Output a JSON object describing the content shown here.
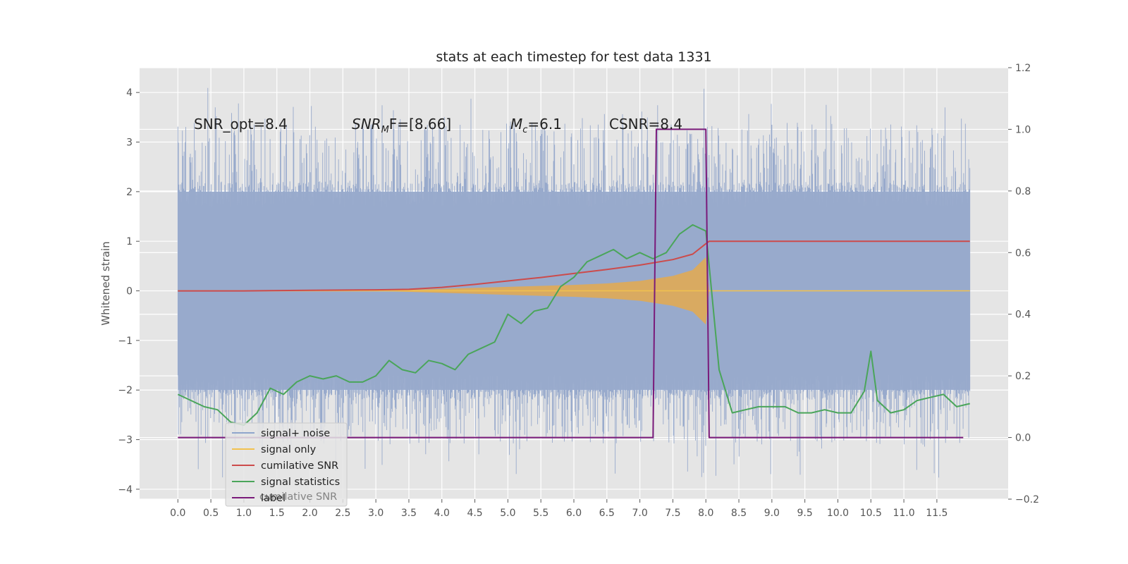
{
  "chart_data": {
    "type": "line",
    "title": "stats at each timestep for test data 1331",
    "ylabel": "Whitened strain",
    "xlim": [
      -0.58,
      12.58
    ],
    "ylim": [
      -4.2,
      4.5
    ],
    "ylim_right": [
      -0.2,
      1.2
    ],
    "x_ticks": [
      "0.0",
      "0.5",
      "1.0",
      "1.5",
      "2.0",
      "2.5",
      "3.0",
      "3.5",
      "4.0",
      "4.5",
      "5.0",
      "5.5",
      "6.0",
      "6.5",
      "7.0",
      "7.5",
      "8.0",
      "8.5",
      "9.0",
      "9.5",
      "10.0",
      "10.5",
      "11.0",
      "11.5"
    ],
    "y_ticks": [
      "4",
      "3",
      "2",
      "1",
      "0",
      "−1",
      "−2",
      "−3",
      "−4"
    ],
    "y_ticks_right": [
      "1.2",
      "1.0",
      "0.8",
      "0.6",
      "0.4",
      "0.2",
      "0.0",
      "−0.2"
    ],
    "grid": true,
    "legend_position": "lower-left",
    "annotations": {
      "snr_opt": "SNR_opt=8.4",
      "snr_mf_main": "SNR",
      "snr_mf_sub": "M",
      "snr_mf_tail": "F=[8.66]",
      "mc_main": "M",
      "mc_sub": "c",
      "mc_tail": "=6.1",
      "csnr": "CSNR=8.4"
    },
    "legend": [
      {
        "label": "signal+ noise",
        "color": "#8fa6cc"
      },
      {
        "label": "signal only",
        "color": "#f2c14e"
      },
      {
        "label": "cumilative SNR",
        "color": "#cc4b4b"
      },
      {
        "label": "signal statistics",
        "color": "#4aa55a"
      },
      {
        "label": "label",
        "color": "#7a1a7a"
      }
    ],
    "legend_ghost_text": "cumilative SNR",
    "series": [
      {
        "name": "signal+ noise",
        "axis": "left",
        "color": "#98aacc",
        "x_range": [
          0.0,
          12.0
        ],
        "envelope_upper": 2.0,
        "envelope_lower": -2.0,
        "description_values": "white noise, spikes up to ~4"
      },
      {
        "name": "signal only",
        "axis": "left",
        "color": "#e0aa55",
        "x": [
          0.0,
          3.0,
          3.5,
          4.0,
          4.5,
          5.0,
          5.5,
          6.0,
          6.5,
          7.0,
          7.5,
          7.8,
          8.0,
          8.05,
          12.0
        ],
        "amplitude": [
          0.0,
          0.0,
          0.02,
          0.04,
          0.06,
          0.08,
          0.1,
          0.12,
          0.15,
          0.2,
          0.3,
          0.42,
          0.68,
          0.0,
          0.0
        ]
      },
      {
        "name": "cumilative SNR",
        "axis": "left",
        "color": "#cc4b4b",
        "x": [
          0.0,
          1.0,
          2.0,
          3.0,
          3.5,
          4.0,
          4.5,
          5.0,
          5.5,
          6.0,
          6.5,
          7.0,
          7.5,
          7.8,
          8.0,
          8.05,
          12.0
        ],
        "values": [
          0.0,
          0.0,
          0.01,
          0.02,
          0.03,
          0.07,
          0.13,
          0.2,
          0.27,
          0.35,
          0.43,
          0.52,
          0.63,
          0.74,
          0.95,
          1.0,
          1.0
        ]
      },
      {
        "name": "signal statistics",
        "axis": "right",
        "color": "#4aa55a",
        "x": [
          0.0,
          0.2,
          0.4,
          0.6,
          0.8,
          1.0,
          1.2,
          1.4,
          1.6,
          1.8,
          2.0,
          2.2,
          2.4,
          2.6,
          2.8,
          3.0,
          3.2,
          3.4,
          3.6,
          3.8,
          4.0,
          4.2,
          4.4,
          4.6,
          4.8,
          5.0,
          5.2,
          5.4,
          5.6,
          5.8,
          6.0,
          6.2,
          6.4,
          6.6,
          6.8,
          7.0,
          7.2,
          7.4,
          7.6,
          7.8,
          8.0,
          8.2,
          8.4,
          8.6,
          8.8,
          9.0,
          9.2,
          9.4,
          9.6,
          9.8,
          10.0,
          10.2,
          10.4,
          10.5,
          10.6,
          10.8,
          11.0,
          11.2,
          11.4,
          11.6,
          11.8,
          12.0
        ],
        "values": [
          0.14,
          0.12,
          0.1,
          0.09,
          0.05,
          0.04,
          0.08,
          0.16,
          0.14,
          0.18,
          0.2,
          0.19,
          0.2,
          0.18,
          0.18,
          0.2,
          0.25,
          0.22,
          0.21,
          0.25,
          0.24,
          0.22,
          0.27,
          0.29,
          0.31,
          0.4,
          0.37,
          0.41,
          0.42,
          0.49,
          0.52,
          0.57,
          0.59,
          0.61,
          0.58,
          0.6,
          0.58,
          0.6,
          0.66,
          0.69,
          0.67,
          0.22,
          0.08,
          0.09,
          0.1,
          0.1,
          0.1,
          0.08,
          0.08,
          0.09,
          0.08,
          0.08,
          0.15,
          0.28,
          0.12,
          0.08,
          0.09,
          0.12,
          0.13,
          0.14,
          0.1,
          0.11
        ]
      },
      {
        "name": "label",
        "axis": "right",
        "color": "#7a1a7a",
        "x": [
          0.0,
          7.2,
          7.25,
          8.0,
          8.05,
          11.9
        ],
        "values": [
          0.0,
          0.0,
          1.0,
          1.0,
          0.0,
          0.0
        ]
      }
    ]
  }
}
